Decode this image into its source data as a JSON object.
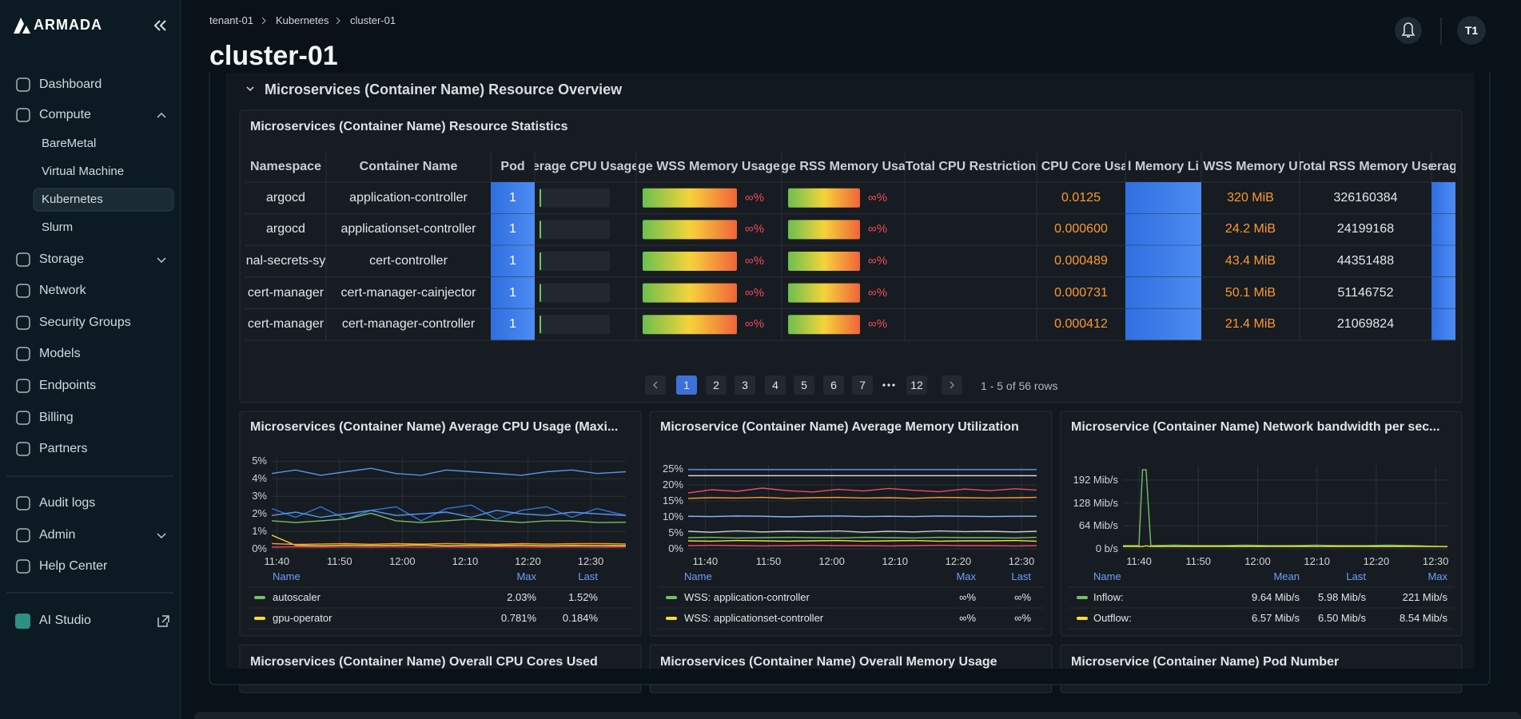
{
  "sidebar": {
    "logo": "ARMADA",
    "main": [
      "Dashboard",
      "Compute",
      "BareMetal",
      "Virtual Machine",
      "Kubernetes",
      "Slurm",
      "Storage",
      "Network",
      "Security Groups",
      "Models",
      "Endpoints",
      "Billing",
      "Partners"
    ],
    "admin": [
      "Audit logs",
      "Admin",
      "Help Center"
    ],
    "apps": [
      "AI Studio"
    ],
    "active": 4
  },
  "header": {
    "breadcrumbs": [
      "tenant-01",
      "Kubernetes",
      "cluster-01"
    ],
    "title": "cluster-01",
    "avatar": "T1"
  },
  "section": {
    "title": "Microservices (Container Name) Resource Overview"
  },
  "table": {
    "title": "Microservices (Container Name) Resource Statistics",
    "columns": [
      "Namespace",
      "Container Name",
      "Pod",
      "erage CPU Usage",
      "ge WSS Memory Usage",
      "ge RSS Memory Usa",
      "Total CPU Restriction",
      "l CPU Core Usa",
      "l Memory Li",
      "WSS Memory U",
      "Total RSS Memory Use",
      "erag"
    ],
    "rows": [
      {
        "namespace": "argocd",
        "container": "application-controller",
        "pod": "1",
        "wss_pct": "∞%",
        "rss_pct": "∞%",
        "cpu_cores": "0.0125",
        "wss_memory": "320 MiB",
        "rss_memory": "326160384"
      },
      {
        "namespace": "argocd",
        "container": "applicationset-controller",
        "pod": "1",
        "wss_pct": "∞%",
        "rss_pct": "∞%",
        "cpu_cores": "0.000600",
        "wss_memory": "24.2 MiB",
        "rss_memory": "24199168"
      },
      {
        "namespace": "nal-secrets-sy",
        "container": "cert-controller",
        "pod": "1",
        "wss_pct": "∞%",
        "rss_pct": "∞%",
        "cpu_cores": "0.000489",
        "wss_memory": "43.4 MiB",
        "rss_memory": "44351488"
      },
      {
        "namespace": "cert-manager",
        "container": "cert-manager-cainjector",
        "pod": "1",
        "wss_pct": "∞%",
        "rss_pct": "∞%",
        "cpu_cores": "0.000731",
        "wss_memory": "50.1 MiB",
        "rss_memory": "51146752"
      },
      {
        "namespace": "cert-manager",
        "container": "cert-manager-controller",
        "pod": "1",
        "wss_pct": "∞%",
        "rss_pct": "∞%",
        "cpu_cores": "0.000412",
        "wss_memory": "21.4 MiB",
        "rss_memory": "21069824"
      }
    ]
  },
  "pagination": {
    "pages": [
      1,
      2,
      3,
      4,
      5,
      6,
      7
    ],
    "last": 12,
    "current": 1,
    "summary": "1 - 5 of 56 rows"
  },
  "chart_data": [
    {
      "type": "line",
      "title": "Microservices (Container Name) Average CPU Usage (Maxi...",
      "x": [
        -0.8,
        3,
        7,
        11,
        15,
        19,
        23,
        27,
        31,
        35,
        39,
        43,
        47,
        51,
        55.6
      ],
      "xlim": [
        -0.8,
        55.6
      ],
      "xticks": [
        {
          "value": 0,
          "label": "11:40"
        },
        {
          "value": 10,
          "label": "11:50"
        },
        {
          "value": 20,
          "label": "12:00"
        },
        {
          "value": 30,
          "label": "12:10"
        },
        {
          "value": 40,
          "label": "12:20"
        },
        {
          "value": 50,
          "label": "12:30"
        }
      ],
      "ylim": [
        0,
        5.2
      ],
      "yticks": [
        {
          "value": 0,
          "label": "0%"
        },
        {
          "value": 1,
          "label": "1%"
        },
        {
          "value": 2,
          "label": "2%"
        },
        {
          "value": 3,
          "label": "3%"
        },
        {
          "value": 4,
          "label": "4%"
        },
        {
          "value": 5,
          "label": "5%"
        }
      ],
      "grid": true,
      "legend_header": [
        "Name",
        "Max",
        "Last"
      ],
      "series": [
        {
          "color": "#5794f2",
          "values": [
            4.3,
            4.5,
            4.2,
            4.4,
            4.6,
            4.3,
            4.2,
            4.5,
            4.4,
            4.3,
            4.2,
            4.4,
            4.5,
            4.3,
            4.4
          ]
        },
        {
          "color": "#3274d9",
          "values": [
            2.3,
            1.8,
            2.4,
            1.7,
            2.2,
            2.4,
            1.6,
            2.3,
            2.5,
            1.7,
            2.2,
            2.4,
            1.8,
            2.3,
            1.9
          ]
        },
        {
          "color": "#5794f2",
          "values": [
            1.9,
            2.1,
            1.8,
            2.0,
            2.2,
            1.9,
            2.0,
            2.1,
            1.8,
            2.2,
            2.0,
            1.9,
            2.1,
            2.0,
            1.9
          ]
        },
        {
          "name": "autoscaler",
          "color": "#73bf69",
          "stats": [
            "2.03%",
            "1.52%"
          ],
          "values": [
            1.6,
            1.5,
            1.6,
            1.7,
            2.03,
            1.6,
            1.5,
            1.6,
            1.7,
            1.6,
            1.5,
            1.6,
            1.6,
            1.5,
            1.52
          ]
        },
        {
          "name": "gpu-operator",
          "color": "#fade2a",
          "stats": [
            "0.781%",
            "0.184%"
          ],
          "values": [
            0.781,
            0.2,
            0.18,
            0.21,
            0.19,
            0.2,
            0.22,
            0.18,
            0.2,
            0.19,
            0.21,
            0.18,
            0.2,
            0.19,
            0.184
          ]
        },
        {
          "color": "#ff9830",
          "values": [
            0.3,
            0.25,
            0.28,
            0.3,
            0.26,
            0.3,
            0.27,
            0.3,
            0.28,
            0.26,
            0.3,
            0.27,
            0.29,
            0.3,
            0.28
          ]
        },
        {
          "color": "#f2495c",
          "values": [
            0.1,
            0.12,
            0.1,
            0.11,
            0.1,
            0.12,
            0.1,
            0.11,
            0.1,
            0.12,
            0.11,
            0.1,
            0.12,
            0.1,
            0.11
          ]
        }
      ]
    },
    {
      "type": "line",
      "title": "Microservice (Container Name) Average Memory Utilization",
      "x": [
        -2.7,
        1,
        5,
        9,
        13,
        17,
        21,
        25,
        29,
        33,
        37,
        41,
        45,
        49,
        52.4
      ],
      "xlim": [
        -2.7,
        52.4
      ],
      "xticks": [
        {
          "value": 0,
          "label": "11:40"
        },
        {
          "value": 10,
          "label": "11:50"
        },
        {
          "value": 20,
          "label": "12:00"
        },
        {
          "value": 30,
          "label": "12:10"
        },
        {
          "value": 40,
          "label": "12:20"
        },
        {
          "value": 50,
          "label": "12:30"
        }
      ],
      "ylim": [
        0,
        26
      ],
      "yticks": [
        {
          "value": 0,
          "label": "0%"
        },
        {
          "value": 5,
          "label": "5%"
        },
        {
          "value": 10,
          "label": "10%"
        },
        {
          "value": 15,
          "label": "15%"
        },
        {
          "value": 20,
          "label": "20%"
        },
        {
          "value": 25,
          "label": "25%"
        }
      ],
      "grid": true,
      "legend_header": [
        "Name",
        "Max",
        "Last"
      ],
      "series": [
        {
          "name": "WSS: application-controller",
          "color": "#73bf69",
          "stats": [
            "∞%",
            "∞%"
          ],
          "values": [
            3.5,
            3.6,
            3.4,
            3.5,
            3.6,
            3.5,
            3.4,
            3.6,
            3.5,
            3.4,
            3.6,
            3.5,
            3.5,
            3.4,
            3.6
          ]
        },
        {
          "name": "WSS: applicationset-controller",
          "color": "#fade2a",
          "stats": [
            "∞%",
            "∞%"
          ],
          "values": [
            2.5,
            2.4,
            2.6,
            2.5,
            2.4,
            2.5,
            2.6,
            2.4,
            2.5,
            2.6,
            2.4,
            2.5,
            2.5,
            2.6,
            2.4
          ]
        },
        {
          "color": "#5794f2",
          "values": [
            24.8,
            24.8,
            24.8,
            24.8,
            24.8,
            24.8,
            24.8,
            24.8,
            24.8,
            24.8,
            24.8,
            24.8,
            24.8,
            24.8,
            24.8
          ]
        },
        {
          "color": "#e0e0e0",
          "values": [
            22.9,
            22.9,
            22.9,
            22.9,
            22.9,
            22.9,
            22.9,
            22.9,
            22.9,
            22.9,
            22.9,
            22.9,
            22.9,
            22.9,
            22.9
          ]
        },
        {
          "color": "#f2495c",
          "values": [
            17.5,
            18.5,
            18,
            19,
            18.2,
            17.8,
            18.6,
            18.1,
            18.9,
            18.3,
            17.9,
            18.7,
            18.2,
            18.8,
            18.4
          ]
        },
        {
          "color": "#ff9830",
          "values": [
            15.8,
            16,
            15.9,
            16.1,
            15.8,
            16,
            16.1,
            15.9,
            16,
            15.8,
            16.1,
            16,
            15.9,
            16,
            16.1
          ]
        },
        {
          "color": "#8ab8ff",
          "values": [
            10.2,
            10.1,
            10.3,
            10.2,
            10,
            10.2,
            10.3,
            10.1,
            10.2,
            10.1,
            10.3,
            10.2,
            10.1,
            10.2,
            10.2
          ]
        },
        {
          "color": "#cccccc",
          "values": [
            5.5,
            5.2,
            5.6,
            5.3,
            5.5,
            5.4,
            5.6,
            5.2,
            5.5,
            5.3,
            5.6,
            5.4,
            5.5,
            5.3,
            5.5
          ]
        },
        {
          "color": "#f2495c",
          "values": [
            1,
            1.1,
            1,
            0.9,
            1,
            1.1,
            1,
            1,
            0.9,
            1,
            1.1,
            1,
            1,
            0.9,
            1
          ]
        }
      ]
    },
    {
      "type": "line",
      "title": "Microservice (Container Name) Network bandwidth per sec...",
      "x": [
        -2.7,
        0,
        0.6,
        1.2,
        2,
        6,
        10,
        14,
        18,
        22,
        26,
        30,
        34,
        38,
        42,
        46,
        52
      ],
      "xlim": [
        -2.7,
        52
      ],
      "xticks": [
        {
          "value": 0,
          "label": "11:40"
        },
        {
          "value": 10,
          "label": "11:50"
        },
        {
          "value": 20,
          "label": "12:00"
        },
        {
          "value": 30,
          "label": "12:10"
        },
        {
          "value": 40,
          "label": "12:20"
        },
        {
          "value": 50,
          "label": "12:30"
        }
      ],
      "ylim": [
        0,
        232
      ],
      "yticks": [
        {
          "value": 0,
          "label": "0 b/s"
        },
        {
          "value": 64,
          "label": "64 Mib/s"
        },
        {
          "value": 128,
          "label": "128 Mib/s"
        },
        {
          "value": 192,
          "label": "192 Mib/s"
        }
      ],
      "grid": true,
      "legend_header": [
        "Name",
        "Mean",
        "Last",
        "Max"
      ],
      "series": [
        {
          "name": "Inflow:",
          "color": "#73bf69",
          "stats": [
            "9.64 Mib/s",
            "5.98 Mib/s",
            "221 Mib/s"
          ],
          "values": [
            9,
            9,
            221,
            221,
            9,
            10,
            9,
            9,
            10,
            9,
            9,
            10,
            9,
            9,
            10,
            9,
            5.98
          ]
        },
        {
          "name": "Outflow:",
          "color": "#fade2a",
          "stats": [
            "6.57 Mib/s",
            "6.50 Mib/s",
            "8.54 Mib/s"
          ],
          "values": [
            6.5,
            6.6,
            6.5,
            8.54,
            6.6,
            6.5,
            6.6,
            6.5,
            6.6,
            6.5,
            6.6,
            6.5,
            6.6,
            6.5,
            6.6,
            6.5,
            6.5
          ]
        }
      ]
    }
  ],
  "bottom_panels": [
    "Microservices (Container Name) Overall CPU Cores Used",
    "Microservices (Container Name) Overall Memory Usage",
    "Microservice (Container Name) Pod Number"
  ]
}
